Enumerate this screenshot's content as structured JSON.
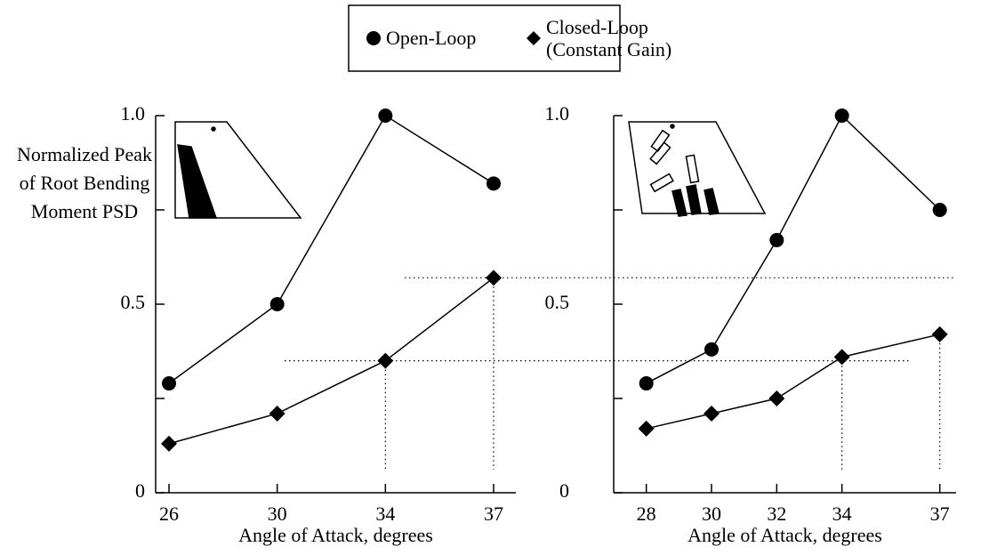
{
  "chart_data": [
    {
      "type": "line",
      "ylabel": "Normalized Peak of Root Bending Moment PSD",
      "xlabel": "Angle of Attack, degrees",
      "categories": [
        "26",
        "30",
        "34",
        "37"
      ],
      "series": [
        {
          "name": "Open-Loop",
          "color": "#000000",
          "marker": "circle",
          "values": [
            0.29,
            0.5,
            1.0,
            0.82
          ]
        },
        {
          "name": "Closed-Loop (Constant Gain)",
          "color": "#000000",
          "marker": "diamond",
          "values": [
            0.13,
            0.21,
            0.35,
            0.57
          ]
        }
      ],
      "ylim": [
        0,
        1
      ],
      "yticks": [
        0,
        0.5,
        {
          "value": 1,
          "label": "1.0"
        }
      ],
      "minor_yticks": [
        0.25,
        0.75
      ]
    },
    {
      "type": "line",
      "xlabel": "Angle of Attack, degrees",
      "x": [
        28,
        30,
        32,
        34,
        37
      ],
      "xlim": [
        27,
        37.5
      ],
      "xticks": [
        28,
        30,
        32,
        34,
        37
      ],
      "series": [
        {
          "name": "Open-Loop",
          "color": "#000000",
          "marker": "circle",
          "values": [
            0.29,
            0.38,
            0.67,
            1.0,
            0.75
          ]
        },
        {
          "name": "Closed-Loop (Constant Gain)",
          "color": "#000000",
          "marker": "diamond",
          "values": [
            0.17,
            0.21,
            0.25,
            0.36,
            0.42
          ]
        }
      ],
      "ylim": [
        0,
        1
      ],
      "yticks": [
        0,
        0.5,
        {
          "value": 1,
          "label": "1.0"
        }
      ],
      "minor_yticks": [
        0.25,
        0.75
      ]
    }
  ]
}
